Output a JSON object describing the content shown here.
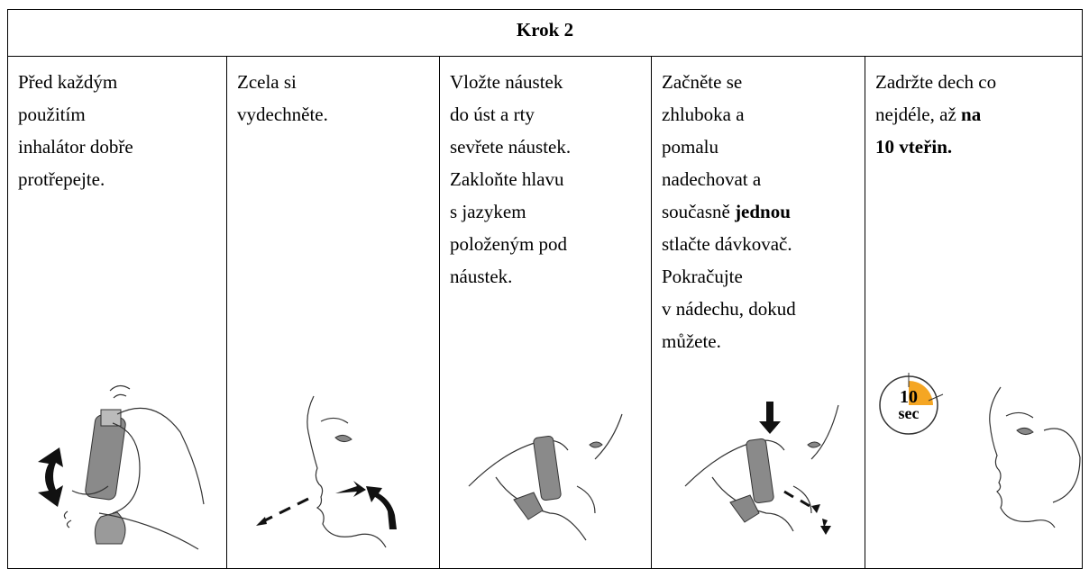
{
  "header": {
    "title": "Krok 2"
  },
  "cells": [
    {
      "lines": [
        [
          {
            "text": "Před každým"
          }
        ],
        [
          {
            "text": "použitím"
          }
        ],
        [
          {
            "text": "inhalátor dobře"
          }
        ],
        [
          {
            "text": "protřepejte."
          }
        ]
      ]
    },
    {
      "lines": [
        [
          {
            "text": "Zcela si"
          }
        ],
        [
          {
            "text": "vydechněte."
          }
        ]
      ]
    },
    {
      "lines": [
        [
          {
            "text": "Vložte náustek"
          }
        ],
        [
          {
            "text": "do úst a rty"
          }
        ],
        [
          {
            "text": "sevřete náustek."
          }
        ],
        [
          {
            "text": "Zakloňte hlavu"
          }
        ],
        [
          {
            "text": "s jazykem"
          }
        ],
        [
          {
            "text": "položeným pod"
          }
        ],
        [
          {
            "text": "náustek."
          }
        ]
      ]
    },
    {
      "lines": [
        [
          {
            "text": "Začněte se"
          }
        ],
        [
          {
            "text": "zhluboka a"
          }
        ],
        [
          {
            "text": "pomalu"
          }
        ],
        [
          {
            "text": "nadechovat a"
          }
        ],
        [
          {
            "text": "současně "
          },
          {
            "text": "jednou",
            "bold": true
          }
        ],
        [
          {
            "text": "stlačte dávkovač."
          }
        ],
        [
          {
            "text": "Pokračujte"
          }
        ],
        [
          {
            "text": "v nádechu, dokud"
          }
        ],
        [
          {
            "text": "můžete."
          }
        ]
      ]
    },
    {
      "lines": [
        [
          {
            "text": "Zadržte dech co"
          }
        ],
        [
          {
            "text": "nejdéle, až "
          },
          {
            "text": "na",
            "bold": true
          }
        ],
        [
          {
            "text": "10 vteřin.",
            "bold": true
          }
        ]
      ]
    }
  ],
  "timer": {
    "number": "10",
    "unit": "sec"
  }
}
